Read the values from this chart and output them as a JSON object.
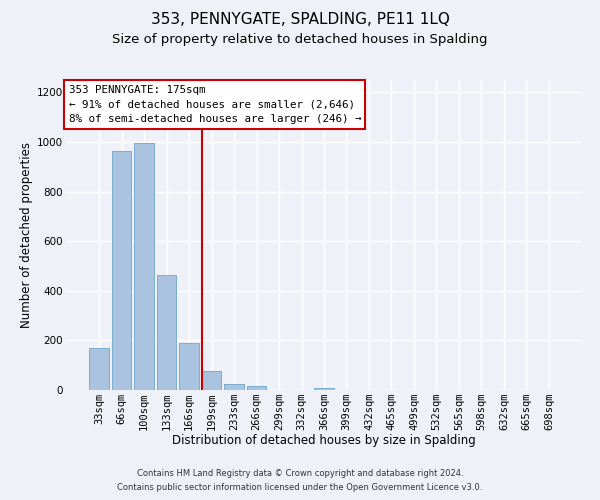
{
  "title": "353, PENNYGATE, SPALDING, PE11 1LQ",
  "subtitle": "Size of property relative to detached houses in Spalding",
  "xlabel": "Distribution of detached houses by size in Spalding",
  "ylabel": "Number of detached properties",
  "bar_labels": [
    "33sqm",
    "66sqm",
    "100sqm",
    "133sqm",
    "166sqm",
    "199sqm",
    "233sqm",
    "266sqm",
    "299sqm",
    "332sqm",
    "366sqm",
    "399sqm",
    "432sqm",
    "465sqm",
    "499sqm",
    "532sqm",
    "565sqm",
    "598sqm",
    "632sqm",
    "665sqm",
    "698sqm"
  ],
  "bar_values": [
    170,
    965,
    995,
    465,
    190,
    75,
    25,
    15,
    0,
    0,
    10,
    0,
    0,
    0,
    0,
    0,
    0,
    0,
    0,
    0,
    0
  ],
  "bar_color": "#aac4e0",
  "bar_edge_color": "#7aadd0",
  "vline_x": 4.58,
  "vline_color": "#cc0000",
  "annotation_title": "353 PENNYGATE: 175sqm",
  "annotation_line1": "← 91% of detached houses are smaller (2,646)",
  "annotation_line2": "8% of semi-detached houses are larger (246) →",
  "annotation_box_color": "#ffffff",
  "annotation_box_edge": "#cc0000",
  "footer_line1": "Contains HM Land Registry data © Crown copyright and database right 2024.",
  "footer_line2": "Contains public sector information licensed under the Open Government Licence v3.0.",
  "ylim": [
    0,
    1250
  ],
  "yticks": [
    0,
    200,
    400,
    600,
    800,
    1000,
    1200
  ],
  "background_color": "#eef2f8",
  "grid_color": "#ffffff",
  "title_fontsize": 11,
  "subtitle_fontsize": 9.5,
  "axis_label_fontsize": 8.5,
  "tick_fontsize": 7.5,
  "footer_fontsize": 6.0
}
